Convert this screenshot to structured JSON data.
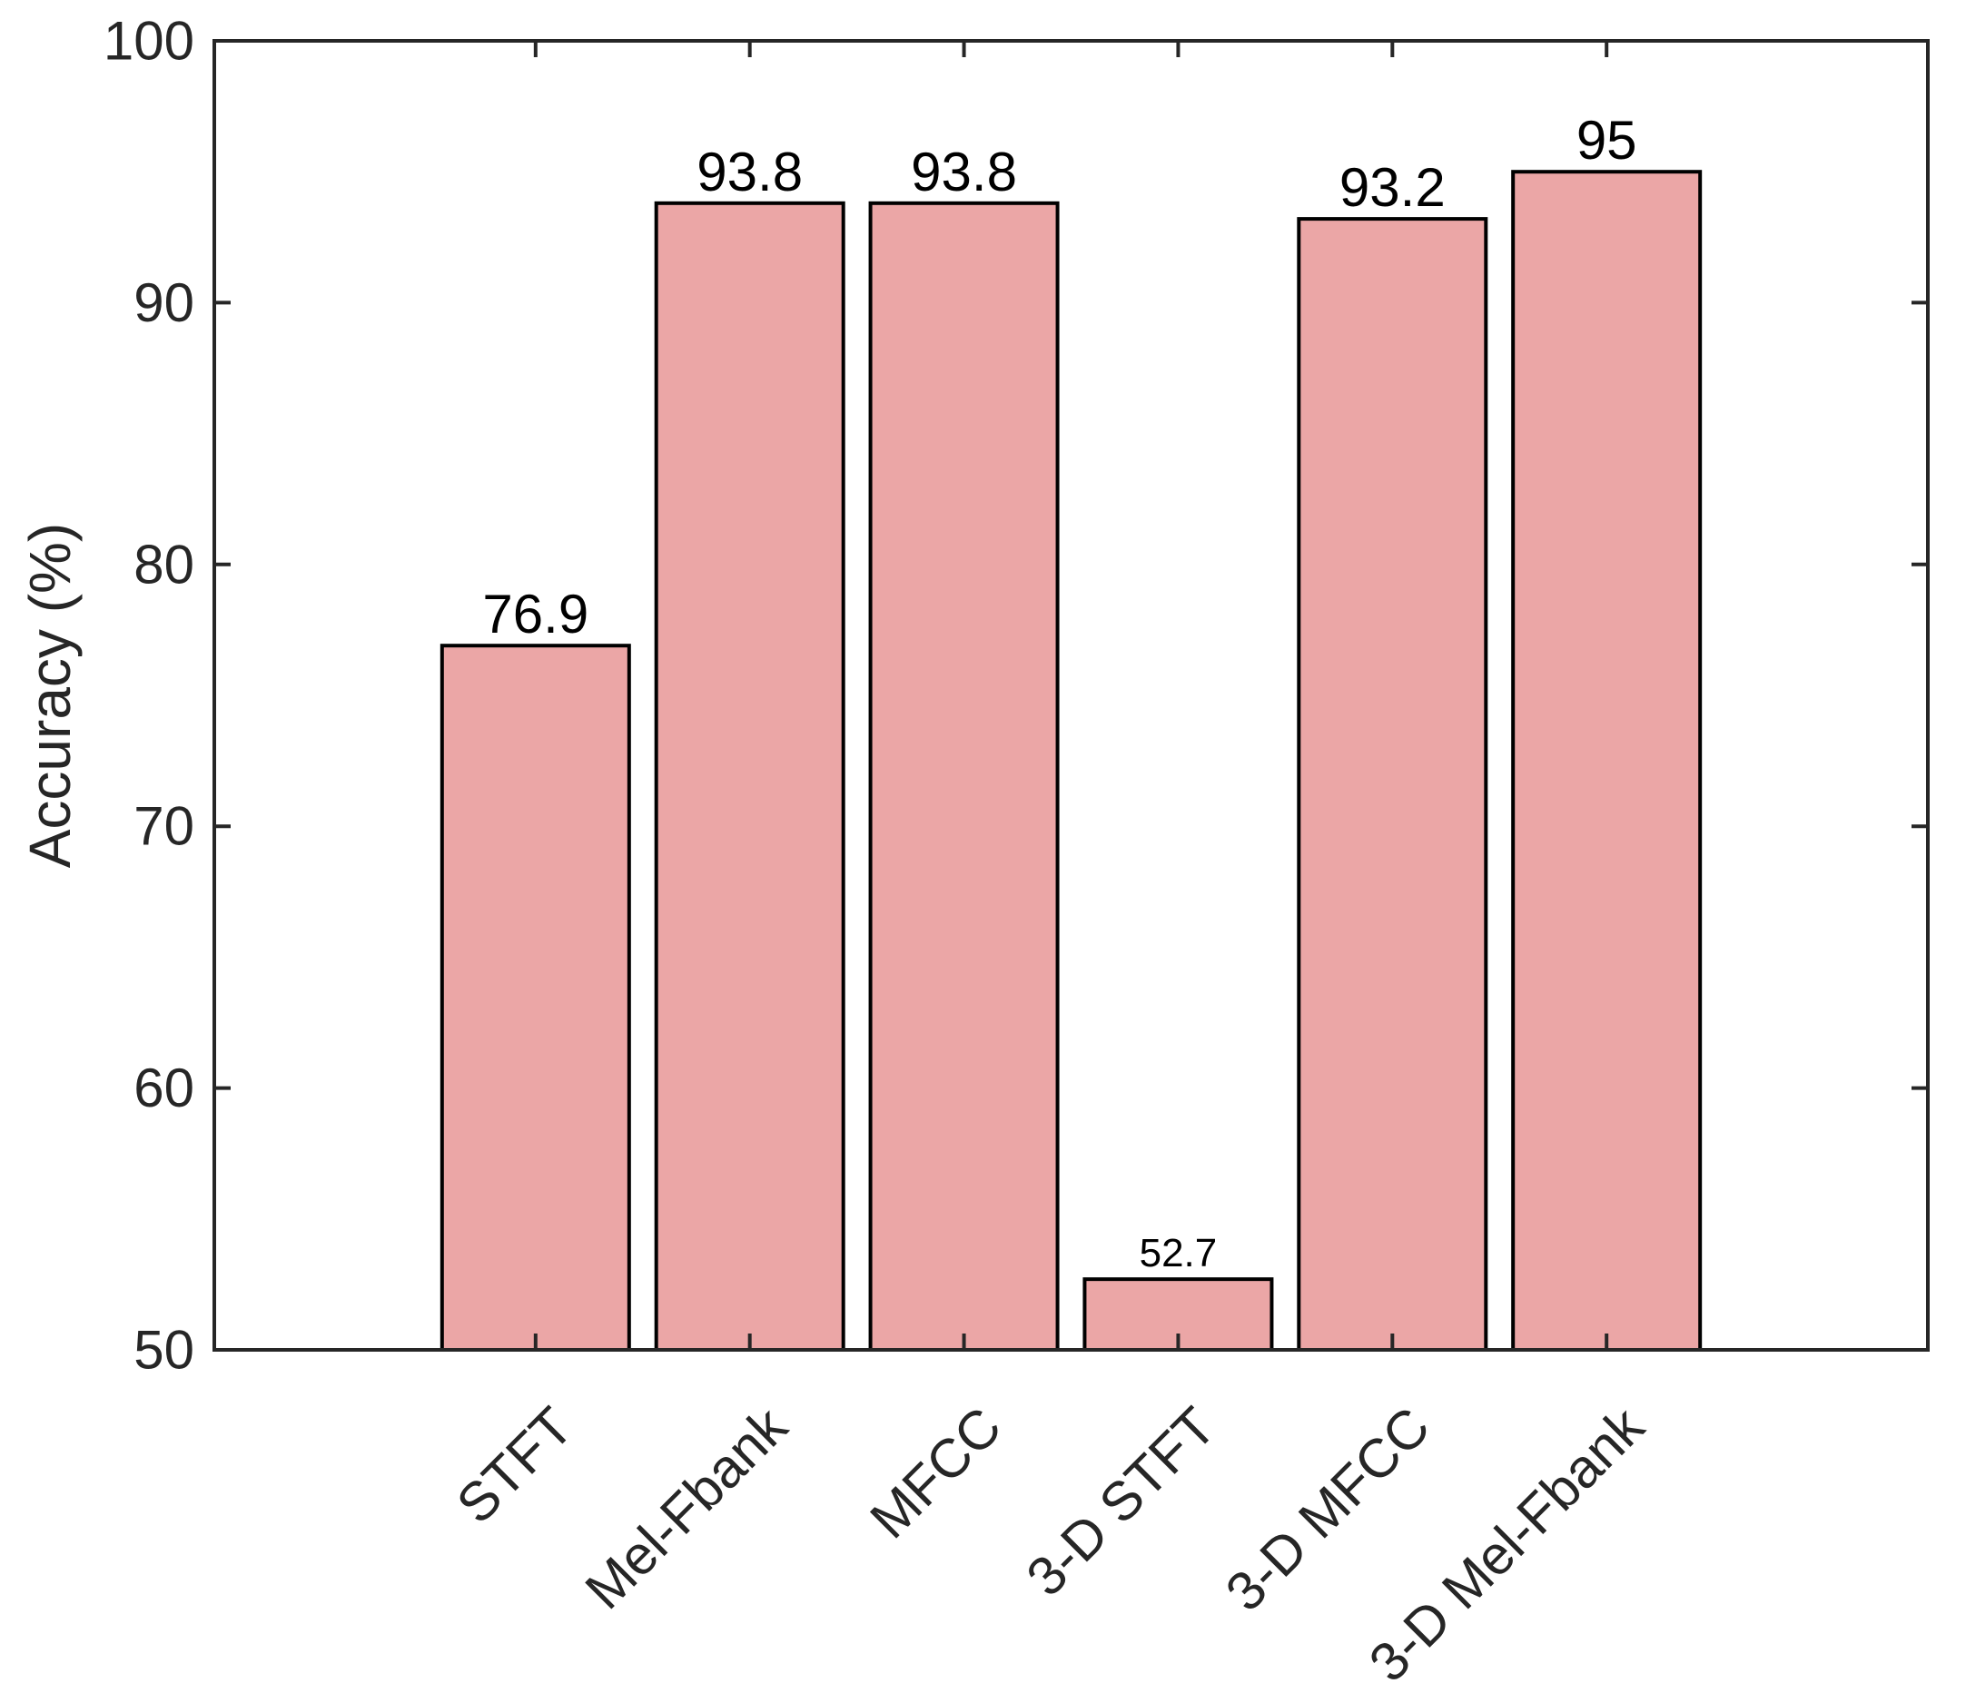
{
  "chart_data": {
    "type": "bar",
    "categories": [
      "STFT",
      "Mel-Fbank",
      "MFCC",
      "3-D STFT",
      "3-D MFCC",
      "3-D Mel-Fbank"
    ],
    "values": [
      76.9,
      93.8,
      93.8,
      52.7,
      93.2,
      95
    ],
    "data_labels": [
      "76.9",
      "93.8",
      "93.8",
      "52.7",
      "93.2",
      "95"
    ],
    "xlabel": "",
    "ylabel": "Accuracy (%)",
    "ylim": [
      50,
      100
    ],
    "xlim": [
      -0.5,
      7.5
    ],
    "yticks": [
      50,
      60,
      70,
      80,
      90,
      100
    ],
    "grid": false,
    "box": true,
    "colors": {
      "bar_fill": "#eba6a6",
      "bar_edge": "#000000",
      "axis": "#262626"
    }
  }
}
